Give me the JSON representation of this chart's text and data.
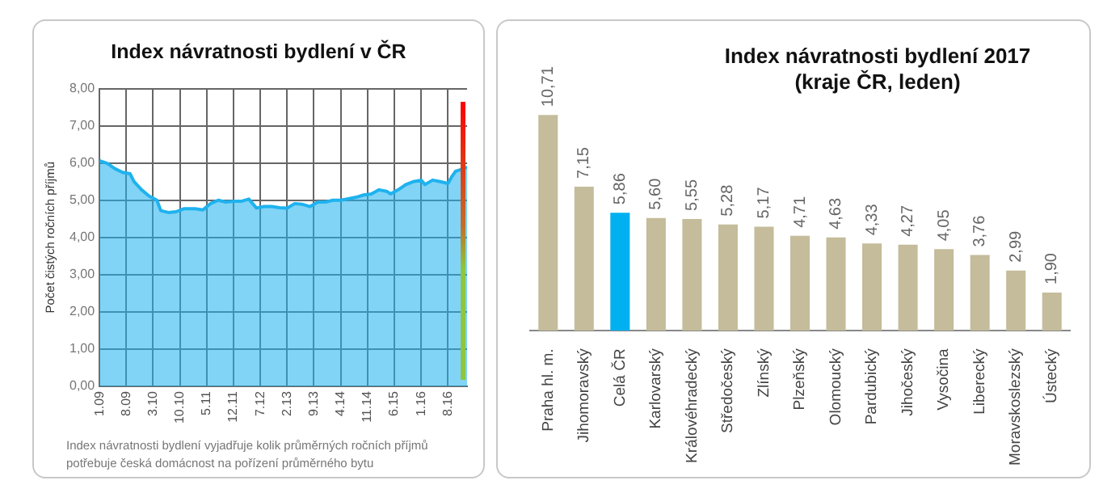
{
  "chart_data": [
    {
      "type": "area",
      "title": "Index návratnosti bydlení v ČR",
      "ylabel": "Počet čistých ročních příjmů",
      "annotations": [
        "Index návratnosti bydlení vyjadřuje kolik průměrných ročních příjmů potřebuje česká domácnost na pořízení průměrného bytu"
      ],
      "x": [
        "2009-01",
        "2009-03",
        "2009-05",
        "2009-07",
        "2009-09",
        "2009-10",
        "2009-12",
        "2010-02",
        "2010-04",
        "2010-05",
        "2010-07",
        "2010-09",
        "2010-11",
        "2011-02",
        "2011-04",
        "2011-06",
        "2011-08",
        "2011-10",
        "2011-12",
        "2012-02",
        "2012-04",
        "2012-06",
        "2012-08",
        "2012-10",
        "2012-12",
        "2013-02",
        "2013-04",
        "2013-06",
        "2013-08",
        "2013-10",
        "2013-12",
        "2014-02",
        "2014-04",
        "2014-06",
        "2014-08",
        "2014-10",
        "2014-12",
        "2015-02",
        "2015-04",
        "2015-05",
        "2015-07",
        "2015-09",
        "2015-11",
        "2016-01",
        "2016-02",
        "2016-04",
        "2016-06",
        "2016-08",
        "2016-09",
        "2016-10",
        "2016-11",
        "2017-01"
      ],
      "series": [
        {
          "color": "#1fb2ee",
          "values": [
            6.06,
            5.99,
            5.85,
            5.75,
            5.71,
            5.5,
            5.28,
            5.11,
            5.0,
            4.72,
            4.67,
            4.69,
            4.77,
            4.77,
            4.74,
            4.91,
            5.0,
            4.95,
            4.97,
            4.97,
            5.03,
            4.79,
            4.83,
            4.83,
            4.8,
            4.79,
            4.91,
            4.89,
            4.83,
            4.95,
            4.95,
            5.0,
            5.0,
            5.04,
            5.08,
            5.14,
            5.17,
            5.28,
            5.24,
            5.17,
            5.28,
            5.42,
            5.5,
            5.54,
            5.42,
            5.54,
            5.5,
            5.45,
            5.63,
            5.78,
            5.81,
            5.89
          ]
        }
      ],
      "xlim": [
        "2009-01",
        "2017-01"
      ],
      "xticks": [
        {
          "value": "2009-01",
          "label": "1.09"
        },
        {
          "value": "2009-08",
          "label": "8.09"
        },
        {
          "value": "2010-03",
          "label": "3.10"
        },
        {
          "value": "2010-10",
          "label": "10.10"
        },
        {
          "value": "2011-05",
          "label": "5.11"
        },
        {
          "value": "2011-12",
          "label": "12.11"
        },
        {
          "value": "2012-07",
          "label": "7.12"
        },
        {
          "value": "2013-02",
          "label": "2.13"
        },
        {
          "value": "2013-09",
          "label": "9.13"
        },
        {
          "value": "2014-04",
          "label": "4.14"
        },
        {
          "value": "2014-11",
          "label": "11.14"
        },
        {
          "value": "2015-06",
          "label": "6.15"
        },
        {
          "value": "2016-01",
          "label": "1.16"
        },
        {
          "value": "2016-08",
          "label": "8.16"
        }
      ],
      "ylim": [
        0,
        8
      ],
      "yticks": [
        {
          "value": 0,
          "label": "0,00"
        },
        {
          "value": 1,
          "label": "1,00"
        },
        {
          "value": 2,
          "label": "2,00"
        },
        {
          "value": 3,
          "label": "3,00"
        },
        {
          "value": 4,
          "label": "4,00"
        },
        {
          "value": 5,
          "label": "5,00"
        },
        {
          "value": 6,
          "label": "6,00"
        },
        {
          "value": 7,
          "label": "7,00"
        },
        {
          "value": 8,
          "label": "8,00"
        }
      ],
      "grid": true
    },
    {
      "type": "bar",
      "title": "Index návratnosti bydlení 2017\n(kraje ČR, leden)",
      "tick_labels": "x",
      "categories": [
        "Praha hl. m.",
        "Jihomoravský",
        "Celá ČR",
        "Karlovarský",
        "Královéhradecký",
        "Středočeský",
        "Zlínský",
        "Plzeňský",
        "Olomoucký",
        "Pardubický",
        "Jihočeský",
        "Vysočina",
        "Liberecký",
        "Moravskoslezský",
        "Ústecký"
      ],
      "values": [
        10.71,
        7.15,
        5.86,
        5.6,
        5.55,
        5.28,
        5.17,
        4.71,
        4.63,
        4.33,
        4.27,
        4.05,
        3.76,
        2.99,
        1.9
      ],
      "value_labels": [
        "10,71",
        "7,15",
        "5,86",
        "5,60",
        "5,55",
        "5,28",
        "5,17",
        "4,71",
        "4,63",
        "4,33",
        "4,27",
        "4,05",
        "3,76",
        "2,99",
        "1,90"
      ],
      "colors": [
        "#c4bc9a",
        "#c4bc9a",
        "#00b0f0",
        "#c4bc9a",
        "#c4bc9a",
        "#c4bc9a",
        "#c4bc9a",
        "#c4bc9a",
        "#c4bc9a",
        "#c4bc9a",
        "#c4bc9a",
        "#c4bc9a",
        "#c4bc9a",
        "#c4bc9a",
        "#c4bc9a"
      ]
    }
  ]
}
